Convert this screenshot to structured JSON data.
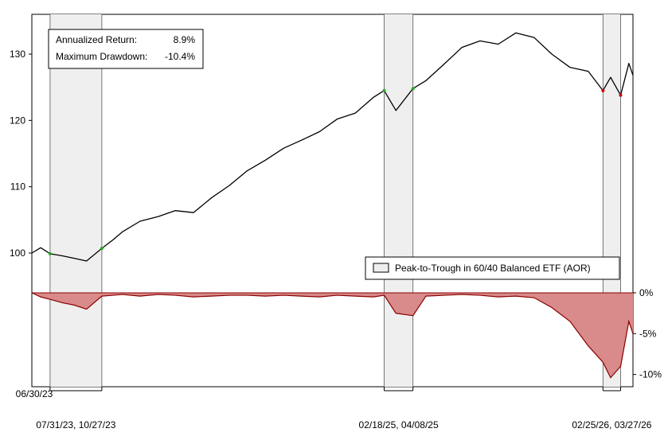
{
  "chart_data": {
    "type": "line",
    "stats": {
      "return_label": "Annualized Return:",
      "return_value": "8.9%",
      "drawdown_label": "Maximum Drawdown:",
      "drawdown_value": "-10.4%"
    },
    "legend": {
      "label": "Peak-to-Trough in 60/40 Balanced ETF (AOR)",
      "placement": "bottom-right of upper panel"
    },
    "price_axis": {
      "ticks": [
        100,
        110,
        120,
        130
      ],
      "tick_labels": [
        "100",
        "110",
        "120",
        "130"
      ],
      "ylim": [
        94,
        136
      ]
    },
    "drawdown_axis": {
      "ticks": [
        0,
        -5,
        -10
      ],
      "tick_labels": [
        "0%",
        "-5%",
        "-10%"
      ],
      "ylim": [
        -11.5,
        0
      ]
    },
    "x_range": [
      "2023-06-30",
      "2026-04-17"
    ],
    "start_label": "06/30/23",
    "periods": [
      {
        "start": "2023-07-31",
        "end": "2023-10-27",
        "label": "07/31/23, 10/27/23"
      },
      {
        "start": "2025-02-18",
        "end": "2025-04-08",
        "label": "02/18/25, 04/08/25"
      },
      {
        "start": "2026-02-25",
        "end": "2026-03-27",
        "label": "02/25/26, 03/27/26"
      }
    ],
    "series": [
      {
        "dates": [
          "2023-06-30",
          "2023-07-15",
          "2023-07-31",
          "2023-08-20",
          "2023-09-10",
          "2023-10-01",
          "2023-10-27",
          "2023-11-15",
          "2023-12-01",
          "2023-12-31",
          "2024-01-31",
          "2024-02-29",
          "2024-03-31",
          "2024-04-30",
          "2024-05-31",
          "2024-06-30",
          "2024-07-31",
          "2024-08-31",
          "2024-09-30",
          "2024-10-31",
          "2024-11-30",
          "2024-12-31",
          "2025-01-31",
          "2025-02-18",
          "2025-03-10",
          "2025-04-08",
          "2025-04-30",
          "2025-05-31",
          "2025-06-30",
          "2025-07-31",
          "2025-08-31",
          "2025-09-30",
          "2025-10-31",
          "2025-11-30",
          "2025-12-31",
          "2026-01-31",
          "2026-02-25",
          "2026-03-10",
          "2026-03-27",
          "2026-04-10",
          "2026-04-17"
        ],
        "price": [
          100.0,
          100.8,
          99.9,
          99.6,
          99.2,
          98.8,
          100.7,
          102.0,
          103.2,
          104.8,
          105.5,
          106.4,
          106.1,
          108.3,
          110.2,
          112.4,
          114.0,
          115.8,
          117.0,
          118.3,
          120.2,
          121.1,
          123.5,
          124.5,
          121.5,
          124.8,
          126.0,
          128.5,
          131.0,
          132.0,
          131.5,
          133.2,
          132.5,
          130.0,
          128.0,
          127.4,
          124.5,
          126.5,
          123.8,
          128.6,
          126.8
        ],
        "drawdown": [
          0,
          -0.5,
          -0.8,
          -1.2,
          -1.5,
          -2.0,
          -0.4,
          -0.3,
          -0.2,
          -0.4,
          -0.2,
          -0.3,
          -0.5,
          -0.4,
          -0.3,
          -0.3,
          -0.4,
          -0.3,
          -0.4,
          -0.5,
          -0.3,
          -0.4,
          -0.5,
          -0.3,
          -2.5,
          -2.8,
          -0.4,
          -0.3,
          -0.2,
          -0.3,
          -0.5,
          -0.4,
          -0.6,
          -1.8,
          -3.5,
          -6.5,
          -8.5,
          -10.4,
          -9.0,
          -3.5,
          -5.0
        ]
      }
    ]
  }
}
